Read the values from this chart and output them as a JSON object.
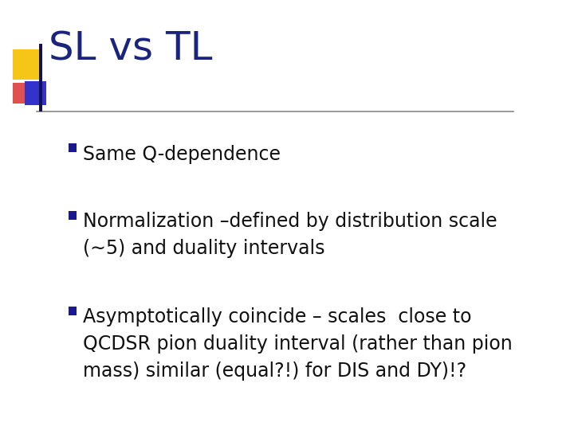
{
  "title": "SL vs TL",
  "title_color": "#1a237e",
  "title_fontsize": 36,
  "background_color": "#ffffff",
  "separator_line_color": "#888888",
  "bullet_color": "#2a2aaa",
  "bullet_square_color": "#1a1a8c",
  "bullets": [
    "Same Q-dependence",
    "Normalization –defined by distribution scale\n(∼5) and duality intervals",
    "Asymptotically coincide – scales  close to\nQCDSR pion duality interval (rather than pion\nmass) similar (equal?!) for DIS and DY)!?"
  ],
  "bullet_fontsize": 17,
  "bullet_font": "DejaVu Sans",
  "logo_yellow": "#f5c518",
  "logo_red": "#e05050",
  "logo_blue": "#3333cc",
  "logo_dark": "#111155"
}
